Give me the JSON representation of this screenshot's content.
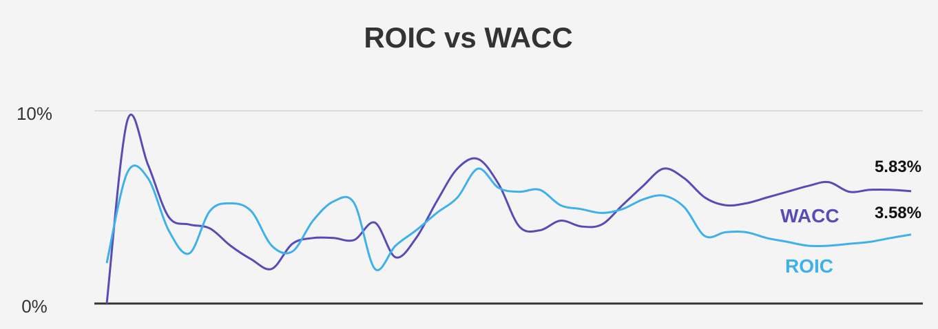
{
  "chart_data": {
    "type": "line",
    "title": "ROIC vs WACC",
    "categories": [
      null,
      null,
      null,
      null,
      null,
      null,
      null,
      null,
      null,
      null,
      null,
      null,
      null,
      null,
      null,
      null,
      null,
      null,
      null,
      null,
      null,
      null,
      null,
      null,
      null,
      null,
      null,
      null,
      null,
      null,
      null,
      null,
      null,
      null,
      null,
      null,
      null,
      null,
      null,
      null
    ],
    "series": [
      {
        "name": "WACC",
        "color": "#574cb5",
        "values": [
          0,
          9.5,
          7.2,
          4.5,
          4.1,
          3.9,
          3.0,
          2.3,
          1.8,
          3.1,
          3.4,
          3.4,
          3.3,
          4.2,
          2.4,
          3.4,
          5.3,
          7.0,
          7.5,
          6.2,
          4.0,
          3.8,
          4.3,
          4.0,
          4.1,
          5.1,
          6.1,
          7.0,
          6.5,
          5.5,
          5.1,
          5.2,
          5.5,
          5.8,
          6.1,
          6.3,
          5.8,
          5.9,
          5.9,
          5.83
        ],
        "value_labels": [
          null,
          null,
          null,
          null,
          null,
          null,
          null,
          null,
          null,
          null,
          null,
          null,
          null,
          null,
          null,
          null,
          null,
          null,
          null,
          null,
          null,
          null,
          null,
          null,
          null,
          null,
          null,
          null,
          null,
          null,
          null,
          null,
          null,
          null,
          null,
          null,
          null,
          null,
          null,
          "5.83%"
        ]
      },
      {
        "name": "ROIC",
        "color": "#3eb0ea",
        "values": [
          2.1,
          6.8,
          6.5,
          3.8,
          2.6,
          4.8,
          5.2,
          4.8,
          3.0,
          2.7,
          4.3,
          5.3,
          5.2,
          1.8,
          3.0,
          3.8,
          4.7,
          5.5,
          7.0,
          6.0,
          5.8,
          5.9,
          5.1,
          4.9,
          4.7,
          4.9,
          5.4,
          5.6,
          5.0,
          3.5,
          3.7,
          3.7,
          3.4,
          3.2,
          3.0,
          3.0,
          3.1,
          3.2,
          3.4,
          3.58
        ],
        "value_labels": [
          null,
          null,
          null,
          null,
          null,
          null,
          null,
          null,
          null,
          null,
          null,
          null,
          null,
          null,
          null,
          null,
          null,
          null,
          null,
          null,
          null,
          null,
          null,
          null,
          null,
          null,
          null,
          null,
          null,
          null,
          null,
          null,
          null,
          null,
          null,
          null,
          null,
          null,
          null,
          "3.58%"
        ]
      }
    ],
    "ylim": [
      0,
      10
    ],
    "yticks": [
      {
        "value": 0,
        "label": "0%"
      },
      {
        "value": 10,
        "label": "10%"
      }
    ],
    "grid": true
  }
}
